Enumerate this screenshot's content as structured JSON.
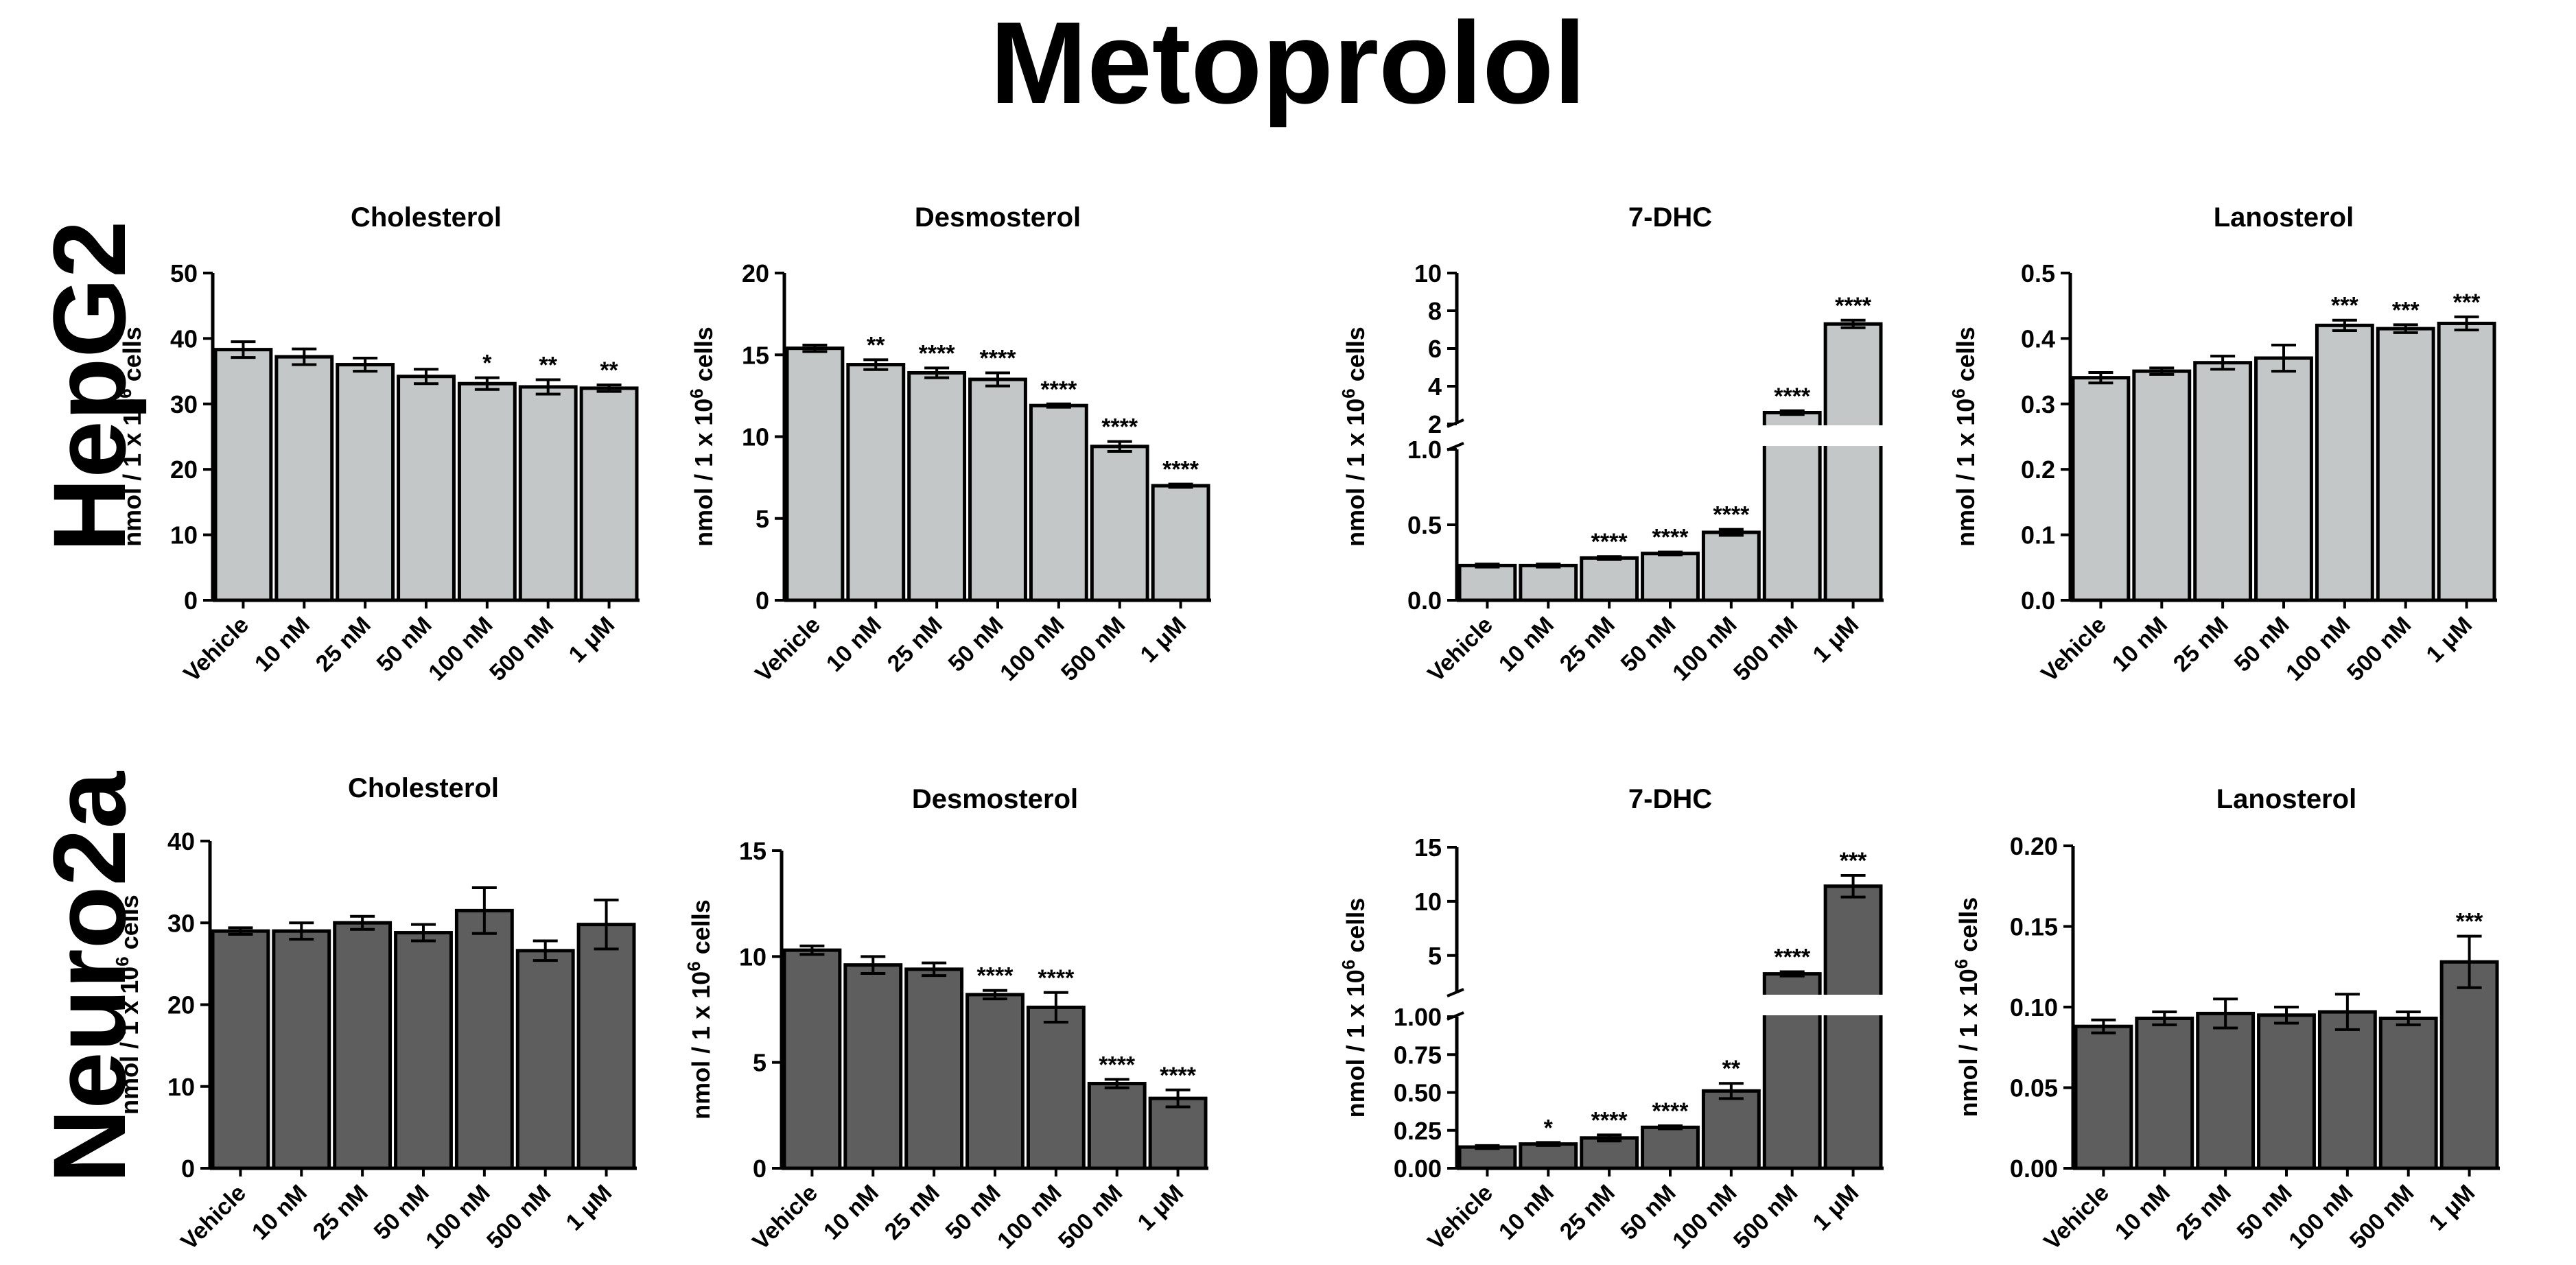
{
  "figure_title": "Metoprolol",
  "row_labels": [
    "HepG2",
    "Neuro2a"
  ],
  "colors": {
    "hepg2_bar": "#c3c7c8",
    "neuro2a_bar": "#5e5e5e",
    "axis": "#000000"
  },
  "chart_data": [
    {
      "type": "bar",
      "panel": "HepG2-Cholesterol",
      "title": "Cholesterol",
      "categories": [
        "Vehicle",
        "10 nM",
        "25 nM",
        "50 nM",
        "100 nM",
        "500 nM",
        "1 μM"
      ],
      "values": [
        38.3,
        37.2,
        36.0,
        34.2,
        33.1,
        32.6,
        32.4
      ],
      "errors": [
        1.2,
        1.2,
        1.0,
        1.1,
        0.9,
        1.1,
        0.5
      ],
      "significance": [
        "",
        "",
        "",
        "",
        "*",
        "**",
        "**"
      ],
      "ylabel_base": "nmol / 1 x 10",
      "ylabel_exp": "6",
      "ylabel_tail": " cells",
      "ylim": [
        0,
        50
      ],
      "yticks": [
        0,
        10,
        20,
        30,
        40,
        50
      ],
      "ytick_labels": [
        "0",
        "10",
        "20",
        "30",
        "40",
        "50"
      ]
    },
    {
      "type": "bar",
      "panel": "HepG2-Desmosterol",
      "title": "Desmosterol",
      "categories": [
        "Vehicle",
        "10 nM",
        "25 nM",
        "50 nM",
        "100 nM",
        "500 nM",
        "1 μM"
      ],
      "values": [
        15.4,
        14.4,
        13.9,
        13.5,
        11.9,
        9.4,
        7.0
      ],
      "errors": [
        0.2,
        0.3,
        0.3,
        0.4,
        0.1,
        0.3,
        0.1
      ],
      "significance": [
        "",
        "**",
        "****",
        "****",
        "****",
        "****",
        "****"
      ],
      "ylabel_base": "nmol / 1 x 10",
      "ylabel_exp": "6",
      "ylabel_tail": " cells",
      "ylim": [
        0,
        20
      ],
      "yticks": [
        0,
        5,
        10,
        15,
        20
      ],
      "ytick_labels": [
        "0",
        "5",
        "10",
        "15",
        "20"
      ]
    },
    {
      "type": "bar",
      "panel": "HepG2-7-DHC",
      "title": "7-DHC",
      "broken_axis": true,
      "categories": [
        "Vehicle",
        "10 nM",
        "25 nM",
        "50 nM",
        "100 nM",
        "500 nM",
        "1 μM"
      ],
      "values": [
        0.23,
        0.23,
        0.28,
        0.31,
        0.45,
        2.6,
        7.3
      ],
      "errors": [
        0.01,
        0.01,
        0.01,
        0.01,
        0.02,
        0.1,
        0.2
      ],
      "significance": [
        "",
        "",
        "****",
        "****",
        "****",
        "****",
        "****"
      ],
      "ylabel_base": "nmol / 1 x 10",
      "ylabel_exp": "6",
      "ylabel_tail": " cells",
      "lower_ylim": [
        0,
        1.0
      ],
      "upper_ylim": [
        2,
        10
      ],
      "lower_yticks": [
        0,
        0.5,
        1.0
      ],
      "lower_ytick_labels": [
        "0.0",
        "0.5",
        "1.0"
      ],
      "upper_yticks": [
        2,
        4,
        6,
        8,
        10
      ],
      "upper_ytick_labels": [
        "2",
        "4",
        "6",
        "8",
        "10"
      ]
    },
    {
      "type": "bar",
      "panel": "HepG2-Lanosterol",
      "title": "Lanosterol",
      "categories": [
        "Vehicle",
        "10 nM",
        "25 nM",
        "50 nM",
        "100 nM",
        "500 nM",
        "1 μM"
      ],
      "values": [
        0.34,
        0.35,
        0.363,
        0.37,
        0.42,
        0.415,
        0.423
      ],
      "errors": [
        0.008,
        0.005,
        0.01,
        0.02,
        0.008,
        0.006,
        0.01
      ],
      "significance": [
        "",
        "",
        "",
        "",
        "***",
        "***",
        "***"
      ],
      "ylabel_base": "nmol / 1 x 10",
      "ylabel_exp": "6",
      "ylabel_tail": " cells",
      "ylim": [
        0,
        0.5
      ],
      "yticks": [
        0,
        0.1,
        0.2,
        0.3,
        0.4,
        0.5
      ],
      "ytick_labels": [
        "0.0",
        "0.1",
        "0.2",
        "0.3",
        "0.4",
        "0.5"
      ]
    },
    {
      "type": "bar",
      "panel": "Neuro2a-Cholesterol",
      "title": "Cholesterol",
      "categories": [
        "Vehicle",
        "10 nM",
        "25 nM",
        "50 nM",
        "100 nM",
        "500 nM",
        "1 μM"
      ],
      "values": [
        29.0,
        29.0,
        30.0,
        28.8,
        31.5,
        26.6,
        29.8
      ],
      "errors": [
        0.4,
        1.0,
        0.8,
        1.0,
        2.8,
        1.2,
        3.0
      ],
      "significance": [
        "",
        "",
        "",
        "",
        "",
        "",
        ""
      ],
      "ylabel_base": "nmol / 1 x 10",
      "ylabel_exp": "6",
      "ylabel_tail": " cells",
      "ylim": [
        0,
        40
      ],
      "yticks": [
        0,
        10,
        20,
        30,
        40
      ],
      "ytick_labels": [
        "0",
        "10",
        "20",
        "30",
        "40"
      ]
    },
    {
      "type": "bar",
      "panel": "Neuro2a-Desmosterol",
      "title": "Desmosterol",
      "categories": [
        "Vehicle",
        "10 nM",
        "25 nM",
        "50 nM",
        "100 nM",
        "500 nM",
        "1 μM"
      ],
      "values": [
        10.3,
        9.6,
        9.4,
        8.2,
        7.6,
        4.0,
        3.3
      ],
      "errors": [
        0.2,
        0.4,
        0.3,
        0.2,
        0.7,
        0.2,
        0.4
      ],
      "significance": [
        "",
        "",
        "",
        "****",
        "****",
        "****",
        "****"
      ],
      "ylabel_base": "nmol / 1 x 10",
      "ylabel_exp": "6",
      "ylabel_tail": " cells",
      "ylim": [
        0,
        15
      ],
      "yticks": [
        0,
        5,
        10,
        15
      ],
      "ytick_labels": [
        "0",
        "5",
        "10",
        "15"
      ]
    },
    {
      "type": "bar",
      "panel": "Neuro2a-7-DHC",
      "title": "7-DHC",
      "broken_axis": true,
      "categories": [
        "Vehicle",
        "10 nM",
        "25 nM",
        "50 nM",
        "100 nM",
        "500 nM",
        "1 μM"
      ],
      "values": [
        0.14,
        0.16,
        0.2,
        0.27,
        0.51,
        3.3,
        11.4
      ],
      "errors": [
        0.01,
        0.01,
        0.02,
        0.01,
        0.05,
        0.2,
        1.0
      ],
      "significance": [
        "",
        "*",
        "****",
        "****",
        "**",
        "****",
        "***"
      ],
      "ylabel_base": "nmol / 1 x 10",
      "ylabel_exp": "6",
      "ylabel_tail": " cells",
      "lower_ylim": [
        0,
        1.0
      ],
      "upper_ylim": [
        1.5,
        15
      ],
      "lower_yticks": [
        0,
        0.25,
        0.5,
        0.75,
        1.0
      ],
      "lower_ytick_labels": [
        "0.00",
        "0.25",
        "0.50",
        "0.75",
        "1.00"
      ],
      "upper_yticks": [
        5,
        10,
        15
      ],
      "upper_ytick_labels": [
        "5",
        "10",
        "15"
      ]
    },
    {
      "type": "bar",
      "panel": "Neuro2a-Lanosterol",
      "title": "Lanosterol",
      "categories": [
        "Vehicle",
        "10 nM",
        "25 nM",
        "50 nM",
        "100 nM",
        "500 nM",
        "1 μM"
      ],
      "values": [
        0.088,
        0.093,
        0.096,
        0.095,
        0.097,
        0.093,
        0.128
      ],
      "errors": [
        0.004,
        0.004,
        0.009,
        0.005,
        0.011,
        0.004,
        0.016
      ],
      "significance": [
        "",
        "",
        "",
        "",
        "",
        "",
        "***"
      ],
      "ylabel_base": "nmol / 1 x 10",
      "ylabel_exp": "6",
      "ylabel_tail": " cells",
      "ylim": [
        0,
        0.2
      ],
      "yticks": [
        0,
        0.05,
        0.1,
        0.15,
        0.2
      ],
      "ytick_labels": [
        "0.00",
        "0.05",
        "0.10",
        "0.15",
        "0.20"
      ]
    }
  ]
}
